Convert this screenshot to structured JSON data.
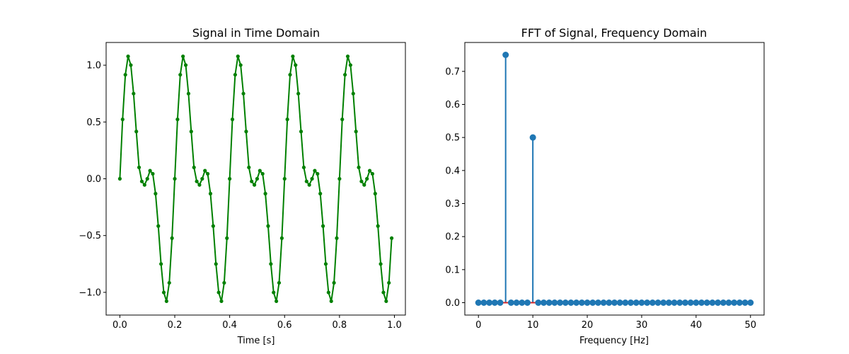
{
  "colors": {
    "time_line": "#008000",
    "stem": "#1f77b4",
    "baseline": "#d62728",
    "axes": "#000000"
  },
  "chart_data": [
    {
      "type": "line",
      "title": "Signal in Time Domain",
      "xlabel": "Time [s]",
      "ylabel": "",
      "xlim": [
        -0.05,
        1.04
      ],
      "ylim": [
        -1.2,
        1.2
      ],
      "xticks": [
        0.0,
        0.2,
        0.4,
        0.6,
        0.8,
        1.0
      ],
      "xtick_labels": [
        "0.0",
        "0.2",
        "0.4",
        "0.6",
        "0.8",
        "1.0"
      ],
      "yticks": [
        -1.0,
        -0.5,
        0.0,
        0.5,
        1.0
      ],
      "ytick_labels": [
        "−1.0",
        "−0.5",
        "0.0",
        "0.5",
        "1.0"
      ],
      "marker": "point",
      "grid": false,
      "x": [
        0.0,
        0.01,
        0.02,
        0.03,
        0.04,
        0.05,
        0.06,
        0.07,
        0.08,
        0.09,
        0.1,
        0.11,
        0.12,
        0.13,
        0.14,
        0.15,
        0.16,
        0.17,
        0.18,
        0.19,
        0.2,
        0.21,
        0.22,
        0.23,
        0.24,
        0.25,
        0.26,
        0.27,
        0.28,
        0.29,
        0.3,
        0.31,
        0.32,
        0.33,
        0.34,
        0.35,
        0.36,
        0.37,
        0.38,
        0.39,
        0.4,
        0.41,
        0.42,
        0.43,
        0.44,
        0.45,
        0.46,
        0.47,
        0.48,
        0.49,
        0.5,
        0.51,
        0.52,
        0.53,
        0.54,
        0.55,
        0.56,
        0.57,
        0.58,
        0.59,
        0.6,
        0.61,
        0.62,
        0.63,
        0.64,
        0.65,
        0.66,
        0.67,
        0.68,
        0.69,
        0.7,
        0.71,
        0.72,
        0.73,
        0.74,
        0.75,
        0.76,
        0.77,
        0.78,
        0.79,
        0.8,
        0.81,
        0.82,
        0.83,
        0.84,
        0.85,
        0.86,
        0.87,
        0.88,
        0.89,
        0.9,
        0.91,
        0.92,
        0.93,
        0.94,
        0.95,
        0.96,
        0.97,
        0.98,
        0.99
      ],
      "y": [
        0.0,
        0.523,
        0.916,
        1.078,
        1.001,
        0.75,
        0.416,
        0.1,
        -0.023,
        -0.054,
        0.0,
        0.071,
        0.044,
        -0.131,
        -0.416,
        -0.75,
        -1.001,
        -1.078,
        -0.916,
        -0.523,
        0.0,
        0.523,
        0.916,
        1.078,
        1.001,
        0.75,
        0.416,
        0.1,
        -0.023,
        -0.054,
        0.0,
        0.071,
        0.044,
        -0.131,
        -0.416,
        -0.75,
        -1.001,
        -1.078,
        -0.916,
        -0.523,
        0.0,
        0.523,
        0.916,
        1.078,
        1.001,
        0.75,
        0.416,
        0.1,
        -0.023,
        -0.054,
        0.0,
        0.071,
        0.044,
        -0.131,
        -0.416,
        -0.75,
        -1.001,
        -1.078,
        -0.916,
        -0.523,
        0.0,
        0.523,
        0.916,
        1.078,
        1.001,
        0.75,
        0.416,
        0.1,
        -0.023,
        -0.054,
        0.0,
        0.071,
        0.044,
        -0.131,
        -0.416,
        -0.75,
        -1.001,
        -1.078,
        -0.916,
        -0.523,
        0.0,
        0.523,
        0.916,
        1.078,
        1.001,
        0.75,
        0.416,
        0.1,
        -0.023,
        -0.054,
        0.0,
        0.071,
        0.044,
        -0.131,
        -0.416,
        -0.75,
        -1.001,
        -1.078,
        -0.916,
        -0.523
      ]
    },
    {
      "type": "stem",
      "title": "FFT of Signal, Frequency Domain",
      "xlabel": "Frequency [Hz]",
      "ylabel": "",
      "xlim": [
        -2.5,
        52.5
      ],
      "ylim": [
        -0.0375,
        0.7875
      ],
      "xticks": [
        0,
        10,
        20,
        30,
        40,
        50
      ],
      "xtick_labels": [
        "0",
        "10",
        "20",
        "30",
        "40",
        "50"
      ],
      "yticks": [
        0.0,
        0.1,
        0.2,
        0.3,
        0.4,
        0.5,
        0.6,
        0.7
      ],
      "ytick_labels": [
        "0.0",
        "0.1",
        "0.2",
        "0.3",
        "0.4",
        "0.5",
        "0.6",
        "0.7"
      ],
      "baseline": 0.0,
      "grid": false,
      "x": [
        0,
        1,
        2,
        3,
        4,
        5,
        6,
        7,
        8,
        9,
        10,
        11,
        12,
        13,
        14,
        15,
        16,
        17,
        18,
        19,
        20,
        21,
        22,
        23,
        24,
        25,
        26,
        27,
        28,
        29,
        30,
        31,
        32,
        33,
        34,
        35,
        36,
        37,
        38,
        39,
        40,
        41,
        42,
        43,
        44,
        45,
        46,
        47,
        48,
        49,
        50
      ],
      "y": [
        0.0,
        0.0,
        0.0,
        0.0,
        0.0,
        0.75,
        0.0,
        0.0,
        0.0,
        0.0,
        0.5,
        0.0,
        0.0,
        0.0,
        0.0,
        0.0,
        0.0,
        0.0,
        0.0,
        0.0,
        0.0,
        0.0,
        0.0,
        0.0,
        0.0,
        0.0,
        0.0,
        0.0,
        0.0,
        0.0,
        0.0,
        0.0,
        0.0,
        0.0,
        0.0,
        0.0,
        0.0,
        0.0,
        0.0,
        0.0,
        0.0,
        0.0,
        0.0,
        0.0,
        0.0,
        0.0,
        0.0,
        0.0,
        0.0,
        0.0,
        0.0
      ]
    }
  ]
}
